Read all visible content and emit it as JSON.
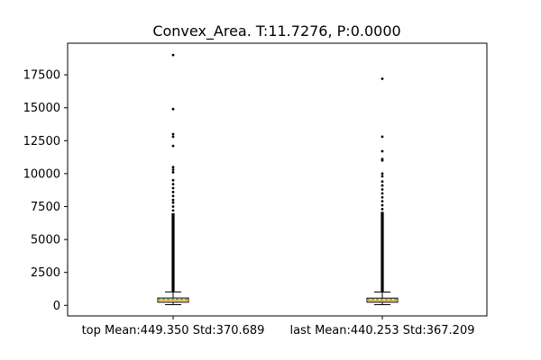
{
  "chart_data": {
    "type": "box",
    "title": "Convex_Area. T:11.7276, P:0.0000",
    "xlabel": "",
    "ylabel": "",
    "categories": [
      "top Mean:449.350 Std:370.689",
      "last Mean:440.253 Std:367.209"
    ],
    "ylim": [
      -800,
      19900
    ],
    "yticks": [
      0,
      2500,
      5000,
      7500,
      10000,
      12500,
      15000,
      17500
    ],
    "ytick_labels": [
      "0",
      "2500",
      "5000",
      "7500",
      "10000",
      "12500",
      "15000",
      "17500"
    ],
    "grid": false,
    "legend": false,
    "boxes": [
      {
        "category": "top Mean:449.350 Std:370.689",
        "whisker_low": 50,
        "q1": 240,
        "median": 390,
        "mean": 449.35,
        "q3": 560,
        "whisker_high": 1020,
        "dense_outlier_range": [
          1020,
          7000
        ],
        "outliers": [
          7200,
          7500,
          7800,
          8000,
          8300,
          8600,
          8900,
          9200,
          9500,
          10100,
          10300,
          10500,
          12100,
          12800,
          13000,
          14900,
          19000
        ]
      },
      {
        "category": "last Mean:440.253 Std:367.209",
        "whisker_low": 50,
        "q1": 240,
        "median": 380,
        "mean": 440.25,
        "q3": 550,
        "whisker_high": 1010,
        "dense_outlier_range": [
          1010,
          7100
        ],
        "outliers": [
          7300,
          7600,
          7900,
          8200,
          8500,
          8800,
          9100,
          9400,
          9800,
          10000,
          11000,
          11100,
          11700,
          12800,
          17200
        ]
      }
    ],
    "colors": {
      "box_fill": "#f6f0c8",
      "box_edge": "#000000",
      "median": "#f0a030",
      "mean": "#2ca02c",
      "outlier": "#000000",
      "axes": "#000000"
    }
  }
}
